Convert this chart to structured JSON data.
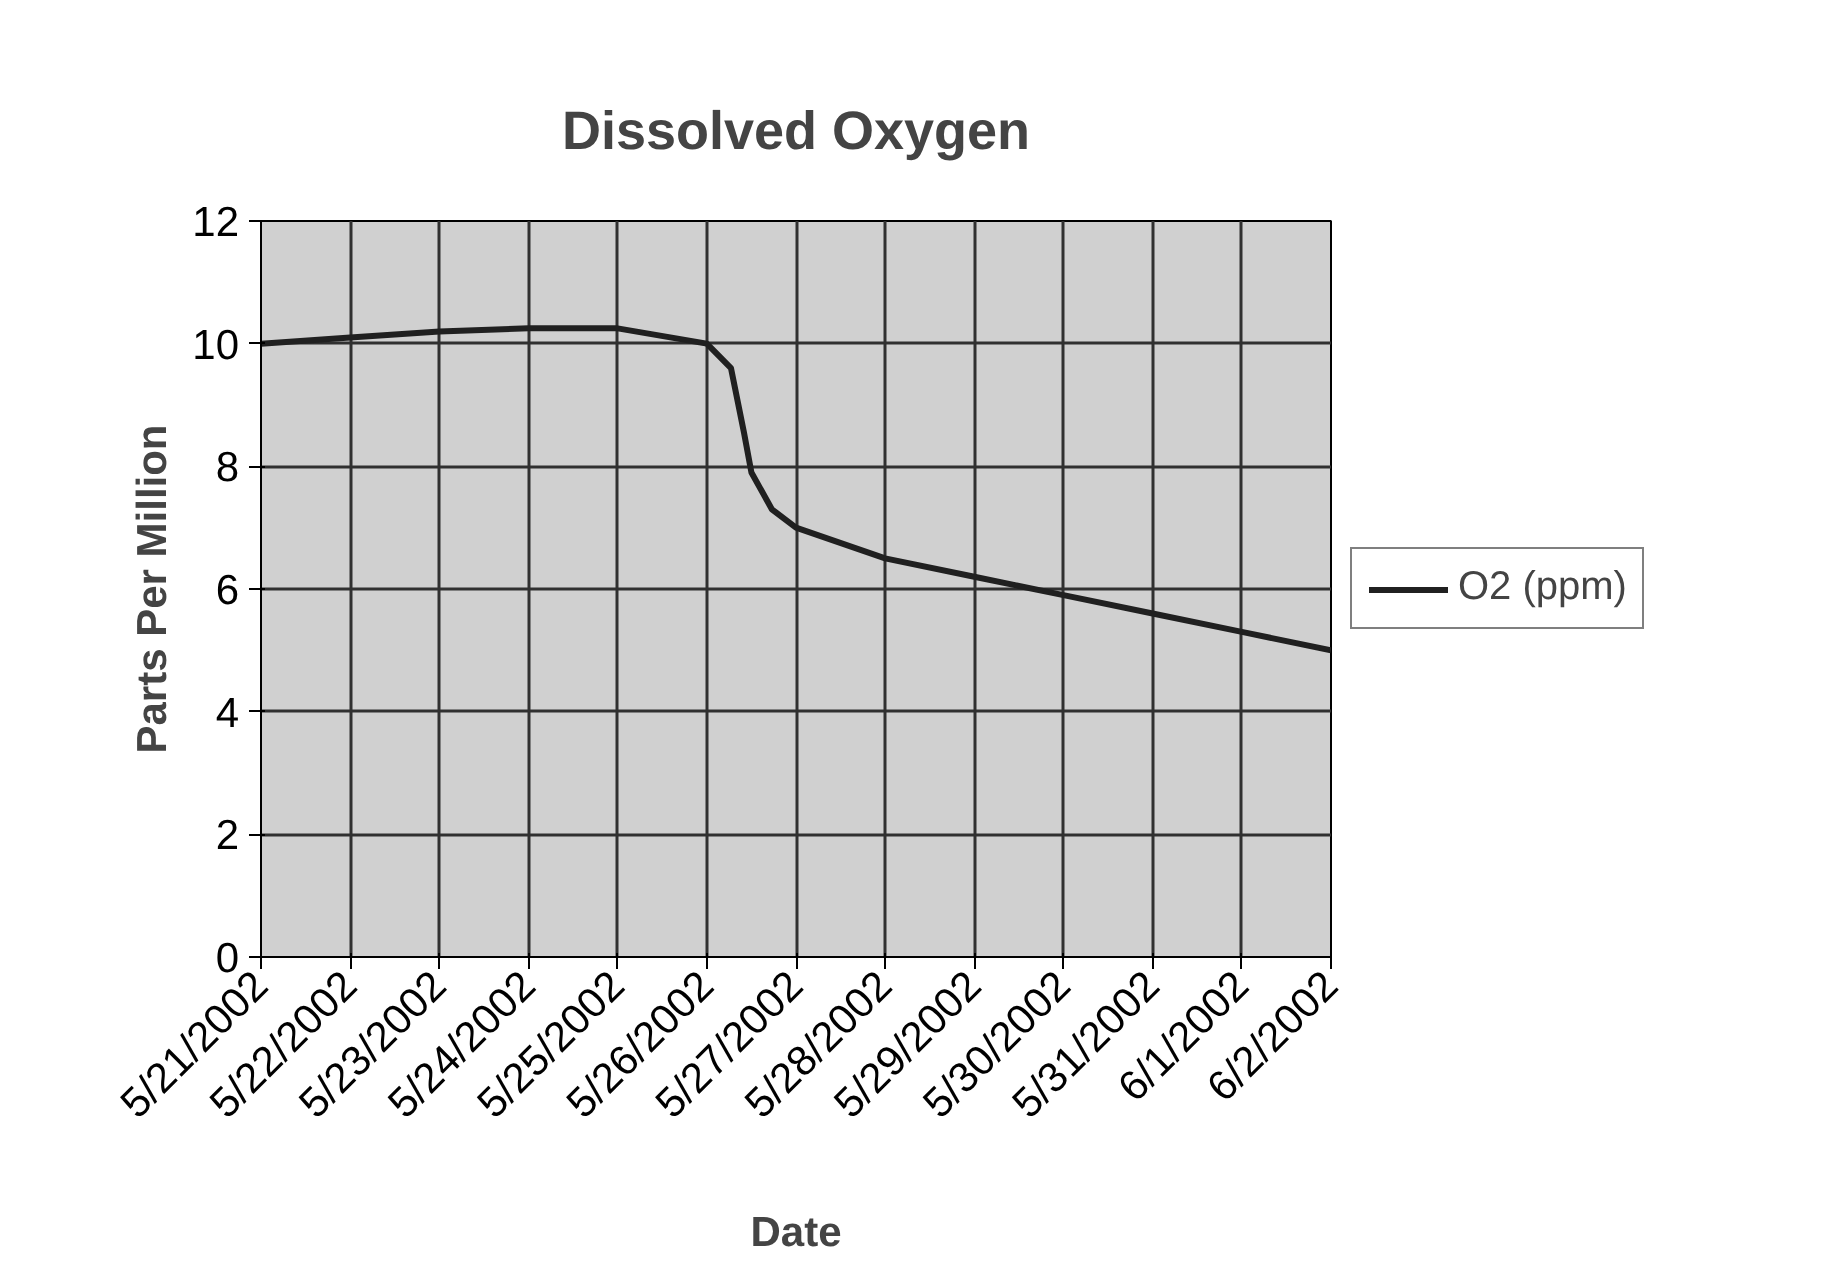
{
  "chart_data": {
    "type": "line",
    "title": "Dissolved Oxygen",
    "xlabel": "Date",
    "ylabel": "Parts Per Million",
    "x": [
      "2002-05-21",
      "2002-05-22",
      "2002-05-23",
      "2002-05-24",
      "2002-05-25",
      "2002-05-26",
      "2002-05-26T06:30",
      "2002-05-26T10:00",
      "2002-05-26T12:00",
      "2002-05-26T17:30",
      "2002-05-27",
      "2002-05-28",
      "2002-05-29",
      "2002-05-30",
      "2002-05-31",
      "2002-06-01",
      "2002-06-02"
    ],
    "series": [
      {
        "name": "O2 (ppm)",
        "color": "#202020",
        "values": [
          10.0,
          10.1,
          10.2,
          10.25,
          10.25,
          10.0,
          9.6,
          8.55,
          7.9,
          7.3,
          7.0,
          6.5,
          6.2,
          5.9,
          5.6,
          5.3,
          5.0
        ]
      }
    ],
    "xlim": [
      "2002-05-21",
      "2002-06-02"
    ],
    "xticks": [
      {
        "value": "2002-05-21",
        "label": "5/21/2002"
      },
      {
        "value": "2002-05-22",
        "label": "5/22/2002"
      },
      {
        "value": "2002-05-23",
        "label": "5/23/2002"
      },
      {
        "value": "2002-05-24",
        "label": "5/24/2002"
      },
      {
        "value": "2002-05-25",
        "label": "5/25/2002"
      },
      {
        "value": "2002-05-26",
        "label": "5/26/2002"
      },
      {
        "value": "2002-05-27",
        "label": "5/27/2002"
      },
      {
        "value": "2002-05-28",
        "label": "5/28/2002"
      },
      {
        "value": "2002-05-29",
        "label": "5/29/2002"
      },
      {
        "value": "2002-05-30",
        "label": "5/30/2002"
      },
      {
        "value": "2002-05-31",
        "label": "5/31/2002"
      },
      {
        "value": "2002-06-01",
        "label": "6/1/2002"
      },
      {
        "value": "2002-06-02",
        "label": "6/2/2002"
      }
    ],
    "ylim": [
      0,
      12
    ],
    "yticks": [
      0,
      2,
      4,
      6,
      8,
      10,
      12
    ],
    "grid": true,
    "legend": "right",
    "marker": "none",
    "line_style": "solid"
  }
}
